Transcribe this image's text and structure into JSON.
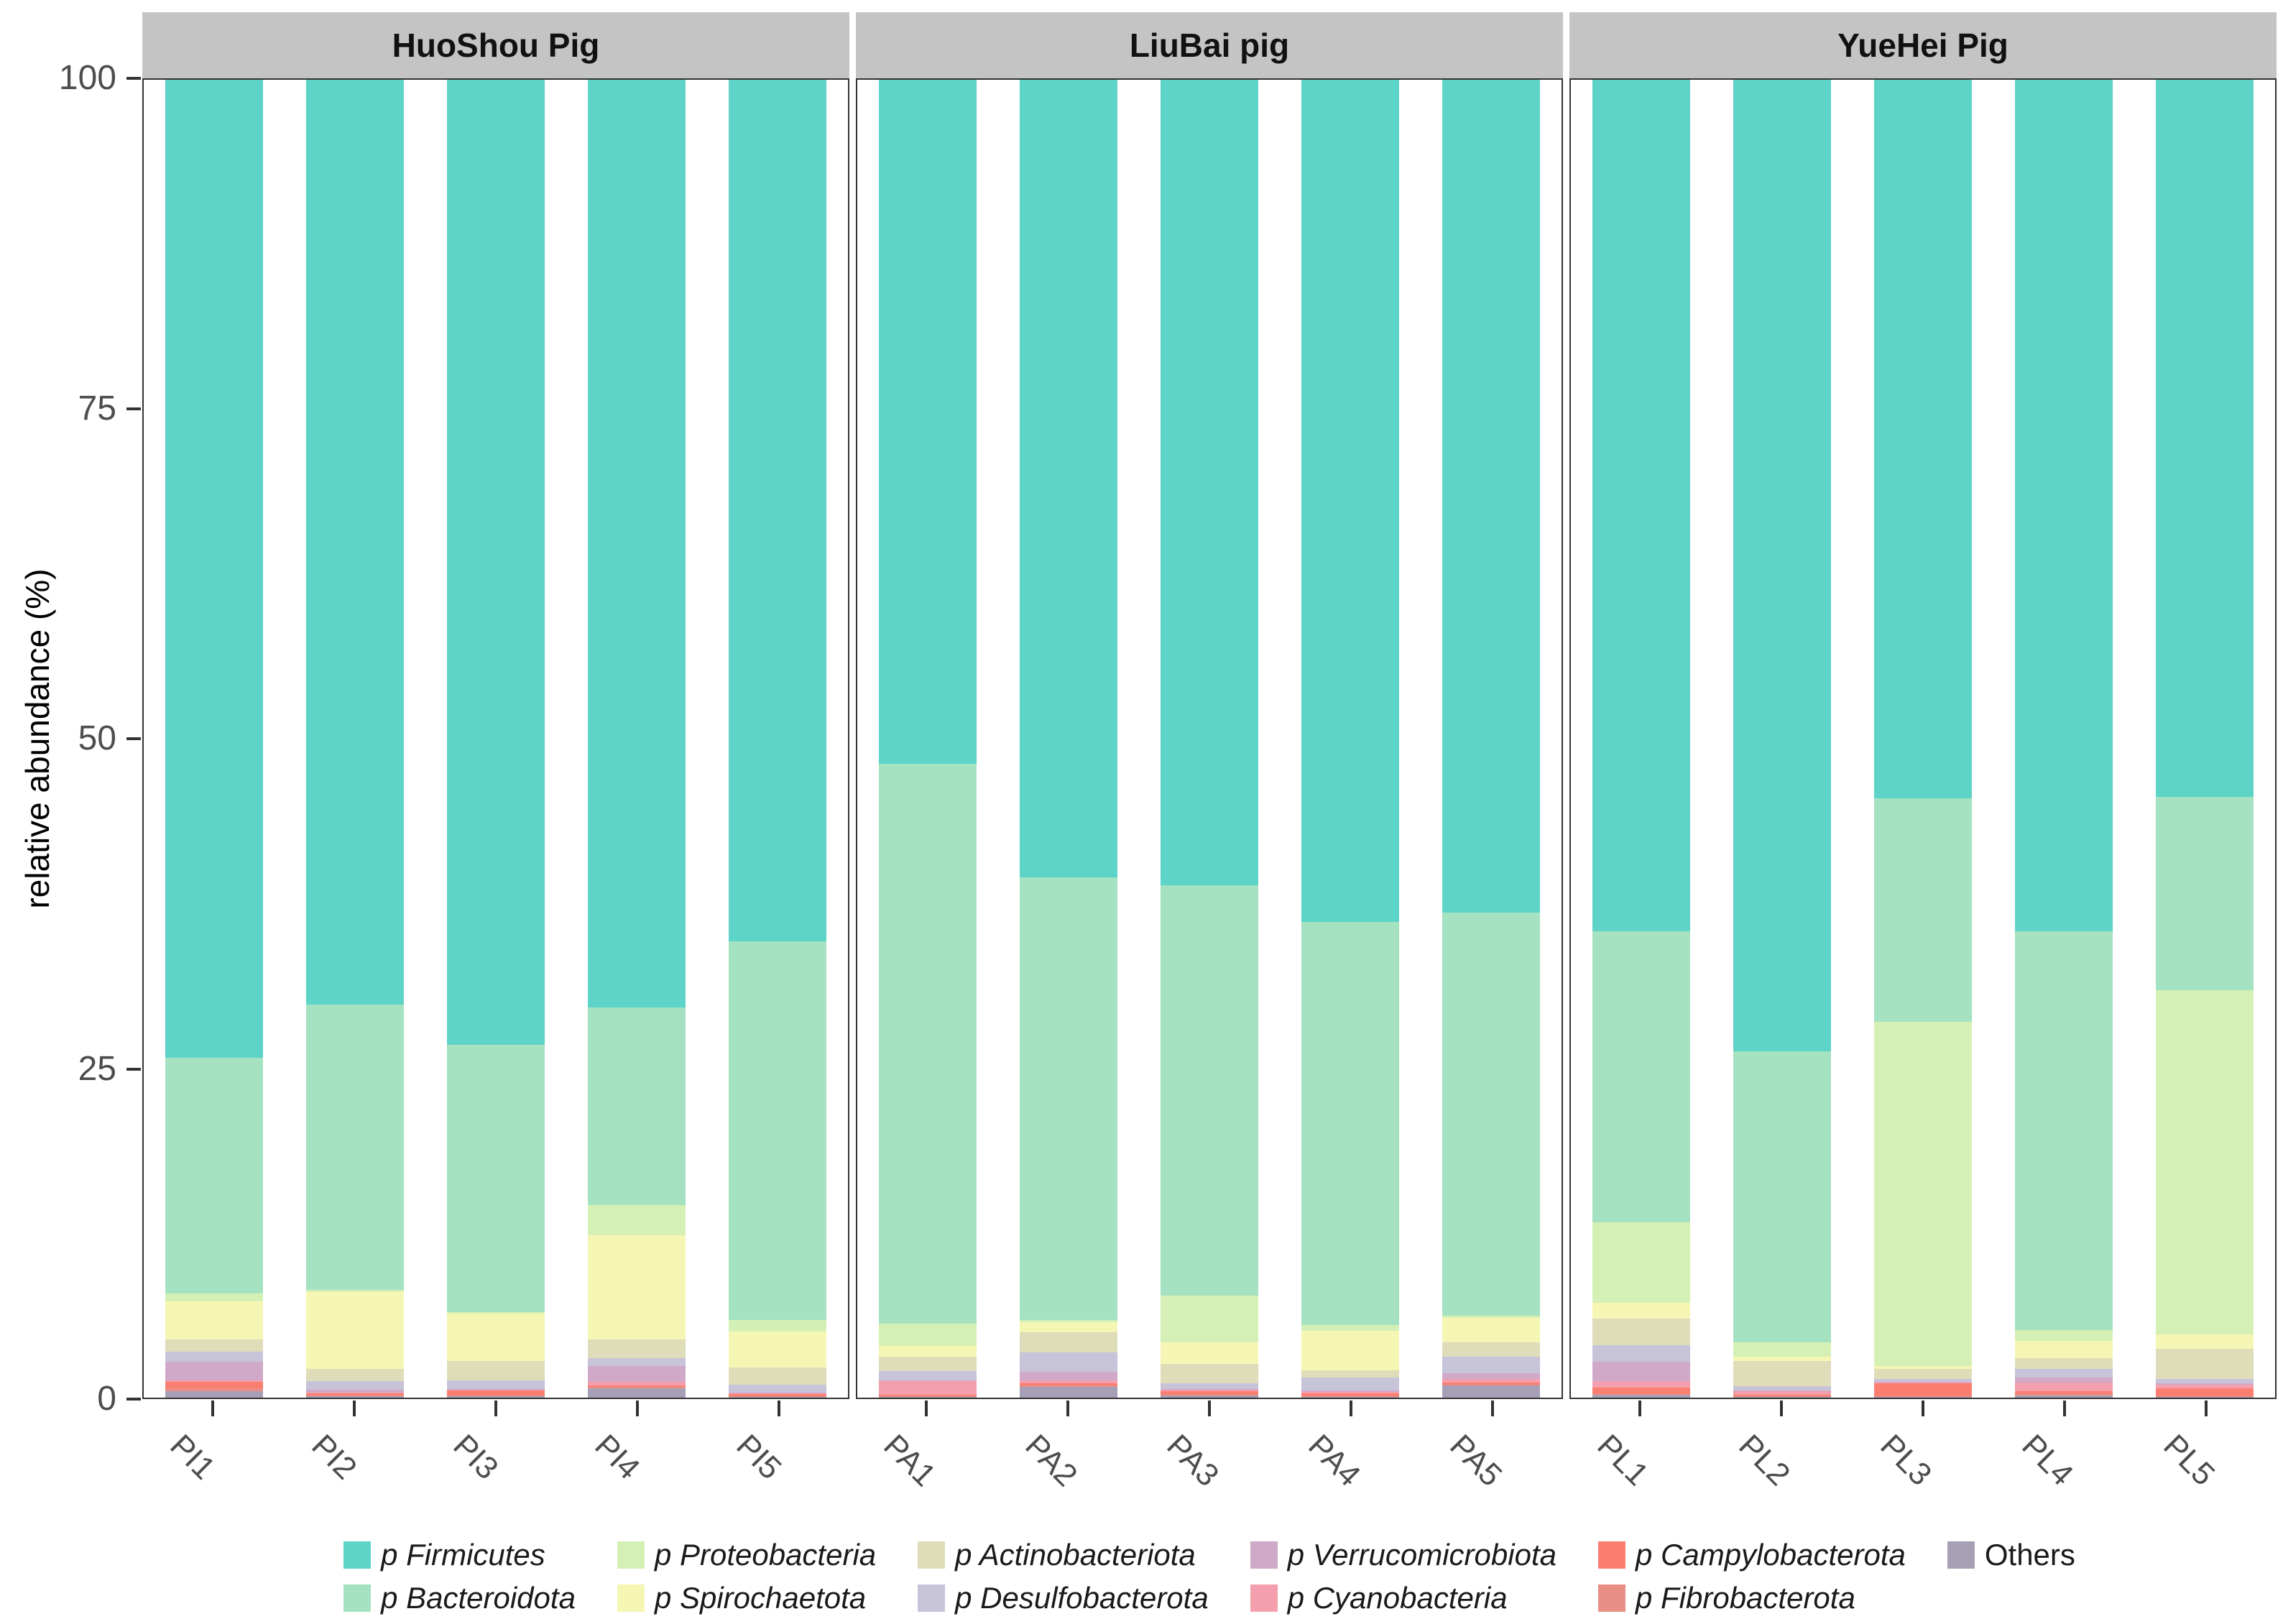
{
  "figure": {
    "y_axis_title": "relative abundance (%)",
    "legend_note": "legend at bottom, two rows, column-major order"
  },
  "colors": {
    "strip_bg": "#C4C4C4",
    "axis_text": "#4D4D4D",
    "panel_border": "#333333"
  },
  "chart_data": {
    "type": "bar",
    "stacked": true,
    "ylabel": "relative abundance (%)",
    "ylim": [
      0,
      100
    ],
    "y_ticks": [
      0,
      25,
      50,
      75,
      100
    ],
    "grid": false,
    "legend_position": "bottom",
    "phyla": [
      {
        "name": "Firmicutes",
        "label": "p Firmicutes",
        "prefix": "p",
        "italic": true,
        "color": "#5ED3C8"
      },
      {
        "name": "Bacteroidota",
        "label": "p Bacteroidota",
        "prefix": "p",
        "italic": true,
        "color": "#A5E2C1"
      },
      {
        "name": "Proteobacteria",
        "label": "p Proteobacteria",
        "prefix": "p",
        "italic": true,
        "color": "#D5F0B4"
      },
      {
        "name": "Spirochaetota",
        "label": "p Spirochaetota",
        "prefix": "p",
        "italic": true,
        "color": "#F6F6B4"
      },
      {
        "name": "Actinobacteriota",
        "label": "p Actinobacteriota",
        "prefix": "p",
        "italic": true,
        "color": "#DFDDB9"
      },
      {
        "name": "Desulfobacterota",
        "label": "p Desulfobacterota",
        "prefix": "p",
        "italic": true,
        "color": "#C7C4D9"
      },
      {
        "name": "Verrucomicrobiota",
        "label": "p Verrucomicrobiota",
        "prefix": "p",
        "italic": true,
        "color": "#D0A9C8"
      },
      {
        "name": "Cyanobacteria",
        "label": "p Cyanobacteria",
        "prefix": "p",
        "italic": true,
        "color": "#F49FAD"
      },
      {
        "name": "Campylobacterota",
        "label": "p Campylobacterota",
        "prefix": "p",
        "italic": true,
        "color": "#FB7F71"
      },
      {
        "name": "Fibrobacterota",
        "label": "p Fibrobacterota",
        "prefix": "p",
        "italic": true,
        "color": "#E89087"
      },
      {
        "name": "Others",
        "label": "Others",
        "prefix": "",
        "italic": false,
        "color": "#A79FB5"
      }
    ],
    "panels": [
      {
        "title": "HuoShou Pig",
        "categories": [
          "PI1",
          "PI2",
          "PI3",
          "PI4",
          "PI5"
        ],
        "values": [
          [
            74.2,
            17.9,
            0.6,
            2.9,
            0.9,
            0.8,
            1.4,
            0.1,
            0.5,
            0.2,
            0.5
          ],
          [
            70.2,
            21.6,
            0.2,
            5.8,
            0.95,
            0.65,
            0.2,
            0.1,
            0.15,
            0.05,
            0.1
          ],
          [
            73.3,
            20.3,
            0.1,
            3.6,
            1.5,
            0.65,
            0.05,
            0.05,
            0.4,
            0.05,
            0.1
          ],
          [
            70.4,
            15.0,
            2.3,
            7.9,
            1.4,
            0.6,
            1.2,
            0.3,
            0.1,
            0.1,
            0.7
          ],
          [
            65.4,
            28.7,
            0.9,
            2.7,
            1.3,
            0.6,
            0.1,
            0.05,
            0.15,
            0.05,
            0.05
          ]
        ]
      },
      {
        "title": "LiuBai pig",
        "categories": [
          "PA1",
          "PA2",
          "PA3",
          "PA4",
          "PA5"
        ],
        "values": [
          [
            51.9,
            42.5,
            1.65,
            0.85,
            1.1,
            0.7,
            0.05,
            1.05,
            0.1,
            0.05,
            0.05
          ],
          [
            60.5,
            33.6,
            0.2,
            0.75,
            1.5,
            1.5,
            0.65,
            0.2,
            0.2,
            0.1,
            0.8
          ],
          [
            61.1,
            31.15,
            3.55,
            1.65,
            1.45,
            0.45,
            0.05,
            0.1,
            0.3,
            0.05,
            0.15
          ],
          [
            63.9,
            30.6,
            0.45,
            3.0,
            0.55,
            0.95,
            0.1,
            0.1,
            0.25,
            0.05,
            0.05
          ],
          [
            63.2,
            30.6,
            0.15,
            1.85,
            1.1,
            1.25,
            0.45,
            0.25,
            0.15,
            0.1,
            0.9
          ]
        ]
      },
      {
        "title": "YueHei Pig",
        "categories": [
          "PL1",
          "PL2",
          "PL3",
          "PL4",
          "PL5"
        ],
        "values": [
          [
            64.6,
            22.1,
            6.1,
            1.2,
            2.0,
            1.3,
            1.45,
            0.5,
            0.5,
            0.05,
            0.2
          ],
          [
            73.7,
            22.1,
            1.1,
            0.3,
            1.95,
            0.3,
            0.05,
            0.3,
            0.1,
            0.05,
            0.05
          ],
          [
            54.5,
            17.0,
            26.1,
            0.2,
            0.8,
            0.2,
            0.05,
            0.05,
            1.0,
            0.05,
            0.05
          ],
          [
            64.6,
            30.3,
            0.8,
            1.3,
            0.8,
            0.7,
            0.35,
            0.65,
            0.25,
            0.1,
            0.15
          ],
          [
            54.4,
            14.7,
            26.1,
            1.1,
            2.3,
            0.3,
            0.1,
            0.3,
            0.6,
            0.05,
            0.05
          ]
        ]
      }
    ]
  }
}
